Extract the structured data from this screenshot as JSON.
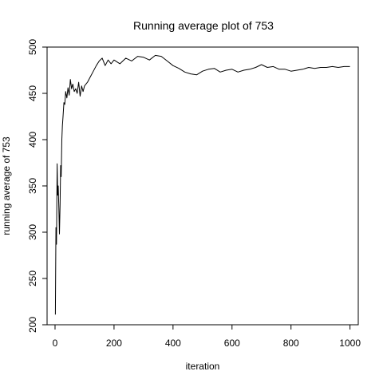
{
  "chart_data": {
    "type": "line",
    "title": "Running average plot of 753",
    "xlabel": "iteration",
    "ylabel": "running average of 753",
    "xlim": [
      -27,
      1028
    ],
    "ylim": [
      200,
      500
    ],
    "x_ticks": [
      0,
      200,
      400,
      600,
      800,
      1000
    ],
    "x_tick_labels": [
      "0",
      "200",
      "400",
      "600",
      "800",
      "1000"
    ],
    "y_ticks": [
      200,
      250,
      300,
      350,
      400,
      450,
      500
    ],
    "y_tick_labels": [
      "200",
      "250",
      "300",
      "350",
      "400",
      "450",
      "500"
    ],
    "grid": false,
    "legend": "none",
    "line_color": "#000000",
    "series": [
      {
        "x": [
          1,
          3,
          5,
          7,
          9,
          11,
          13,
          15,
          17,
          19,
          21,
          23,
          25,
          27,
          30,
          33,
          36,
          40,
          44,
          48,
          52,
          56,
          60,
          65,
          70,
          75,
          80,
          85,
          90,
          95,
          100,
          110,
          120,
          130,
          140,
          150,
          160,
          170,
          180,
          190,
          200,
          220,
          240,
          260,
          280,
          300,
          320,
          340,
          360,
          380,
          400,
          420,
          440,
          460,
          480,
          500,
          520,
          540,
          560,
          580,
          600,
          620,
          640,
          660,
          680,
          700,
          720,
          740,
          760,
          780,
          800,
          820,
          840,
          860,
          880,
          900,
          920,
          940,
          960,
          980,
          1000
        ],
        "y": [
          211,
          305,
          287,
          374,
          340,
          350,
          325,
          298,
          330,
          372,
          360,
          400,
          415,
          425,
          440,
          438,
          452,
          445,
          456,
          448,
          465,
          455,
          460,
          452,
          455,
          450,
          462,
          447,
          458,
          452,
          458,
          462,
          468,
          474,
          480,
          485,
          488,
          480,
          486,
          482,
          486,
          482,
          488,
          485,
          490,
          489,
          486,
          491,
          490,
          485,
          480,
          477,
          473,
          471,
          470,
          474,
          476,
          477,
          473,
          475,
          476,
          473,
          475,
          476,
          478,
          481,
          478,
          479,
          476,
          476,
          474,
          475,
          476,
          478,
          477,
          478,
          478,
          479,
          478,
          479,
          479
        ]
      }
    ]
  }
}
